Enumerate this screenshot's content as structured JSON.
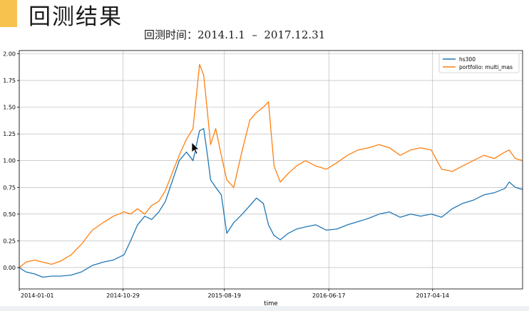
{
  "slide": {
    "title": "回测结果",
    "subtitle": "回测时间：2014.1.1  –  2017.12.31"
  },
  "colors": {
    "accent": "#f7c24d",
    "hs300": "#1f77b4",
    "portfolio": "#ff7f0e",
    "grid": "#b0b0b0"
  },
  "chart_data": {
    "type": "line",
    "title": "",
    "xlabel": "time",
    "ylabel": "",
    "ylim": [
      -0.2,
      2.03
    ],
    "yticks": [
      0.0,
      0.25,
      0.5,
      0.75,
      1.0,
      1.25,
      1.5,
      1.75,
      2.0
    ],
    "ytick_labels": [
      "0.00",
      "0.25",
      "0.50",
      "0.75",
      "1.00",
      "1.25",
      "1.50",
      "1.75",
      "2.00"
    ],
    "xlim": [
      "2014-01-01",
      "2017-12-31"
    ],
    "xticks": [
      "2014-01-01",
      "2014-10-29",
      "2015-08-19",
      "2016-06-17",
      "2017-04-14"
    ],
    "grid": true,
    "legend_position": "top-right",
    "series": [
      {
        "name": "hs300",
        "color": "#1f77b4",
        "x": [
          "2014-01-01",
          "2014-01-20",
          "2014-02-15",
          "2014-03-10",
          "2014-04-05",
          "2014-05-01",
          "2014-06-01",
          "2014-07-01",
          "2014-08-01",
          "2014-09-01",
          "2014-10-01",
          "2014-11-01",
          "2014-11-20",
          "2014-12-10",
          "2014-12-31",
          "2015-01-20",
          "2015-02-10",
          "2015-03-01",
          "2015-03-20",
          "2015-04-10",
          "2015-05-01",
          "2015-05-20",
          "2015-06-08",
          "2015-06-20",
          "2015-07-01",
          "2015-07-10",
          "2015-07-25",
          "2015-08-10",
          "2015-08-26",
          "2015-09-15",
          "2015-10-10",
          "2015-11-01",
          "2015-11-20",
          "2015-12-10",
          "2015-12-25",
          "2016-01-10",
          "2016-01-28",
          "2016-02-20",
          "2016-03-15",
          "2016-04-10",
          "2016-05-10",
          "2016-06-10",
          "2016-07-10",
          "2016-08-10",
          "2016-09-10",
          "2016-10-10",
          "2016-11-10",
          "2016-12-10",
          "2017-01-10",
          "2017-02-10",
          "2017-03-10",
          "2017-04-10",
          "2017-05-10",
          "2017-06-10",
          "2017-07-10",
          "2017-08-10",
          "2017-09-10",
          "2017-10-10",
          "2017-11-10",
          "2017-11-22",
          "2017-12-10",
          "2017-12-31"
        ],
        "y": [
          0.0,
          -0.04,
          -0.06,
          -0.09,
          -0.08,
          -0.08,
          -0.07,
          -0.04,
          0.02,
          0.05,
          0.07,
          0.12,
          0.25,
          0.4,
          0.48,
          0.45,
          0.52,
          0.62,
          0.8,
          1.0,
          1.08,
          1.0,
          1.28,
          1.3,
          1.05,
          0.82,
          0.75,
          0.68,
          0.32,
          0.42,
          0.5,
          0.58,
          0.65,
          0.6,
          0.4,
          0.3,
          0.26,
          0.32,
          0.36,
          0.38,
          0.4,
          0.35,
          0.36,
          0.4,
          0.43,
          0.46,
          0.5,
          0.52,
          0.47,
          0.5,
          0.48,
          0.5,
          0.47,
          0.55,
          0.6,
          0.63,
          0.68,
          0.7,
          0.74,
          0.8,
          0.75,
          0.73
        ]
      },
      {
        "name": "portfolio: multi_mas",
        "color": "#ff7f0e",
        "x": [
          "2014-01-01",
          "2014-01-20",
          "2014-02-15",
          "2014-03-10",
          "2014-04-05",
          "2014-05-01",
          "2014-06-01",
          "2014-07-01",
          "2014-08-01",
          "2014-09-01",
          "2014-10-01",
          "2014-11-01",
          "2014-11-20",
          "2014-12-10",
          "2014-12-31",
          "2015-01-20",
          "2015-02-10",
          "2015-03-01",
          "2015-03-20",
          "2015-04-10",
          "2015-05-01",
          "2015-05-20",
          "2015-06-08",
          "2015-06-20",
          "2015-07-01",
          "2015-07-10",
          "2015-07-25",
          "2015-08-10",
          "2015-08-26",
          "2015-09-15",
          "2015-10-10",
          "2015-11-01",
          "2015-11-20",
          "2015-12-10",
          "2015-12-25",
          "2016-01-10",
          "2016-01-28",
          "2016-02-20",
          "2016-03-15",
          "2016-04-10",
          "2016-05-10",
          "2016-06-10",
          "2016-07-10",
          "2016-08-10",
          "2016-09-10",
          "2016-10-10",
          "2016-11-10",
          "2016-12-10",
          "2017-01-10",
          "2017-02-10",
          "2017-03-10",
          "2017-04-10",
          "2017-05-10",
          "2017-06-10",
          "2017-07-10",
          "2017-08-10",
          "2017-09-10",
          "2017-10-10",
          "2017-11-10",
          "2017-11-22",
          "2017-12-10",
          "2017-12-31"
        ],
        "y": [
          0.0,
          0.05,
          0.07,
          0.05,
          0.03,
          0.06,
          0.12,
          0.22,
          0.35,
          0.42,
          0.48,
          0.52,
          0.5,
          0.55,
          0.5,
          0.58,
          0.62,
          0.72,
          0.88,
          1.05,
          1.2,
          1.3,
          1.9,
          1.8,
          1.45,
          1.15,
          1.3,
          1.05,
          0.82,
          0.75,
          1.1,
          1.38,
          1.45,
          1.5,
          1.55,
          0.95,
          0.8,
          0.88,
          0.95,
          1.0,
          0.95,
          0.92,
          0.98,
          1.05,
          1.1,
          1.12,
          1.15,
          1.12,
          1.05,
          1.1,
          1.12,
          1.1,
          0.92,
          0.9,
          0.95,
          1.0,
          1.05,
          1.02,
          1.08,
          1.1,
          1.02,
          1.0
        ]
      }
    ]
  }
}
